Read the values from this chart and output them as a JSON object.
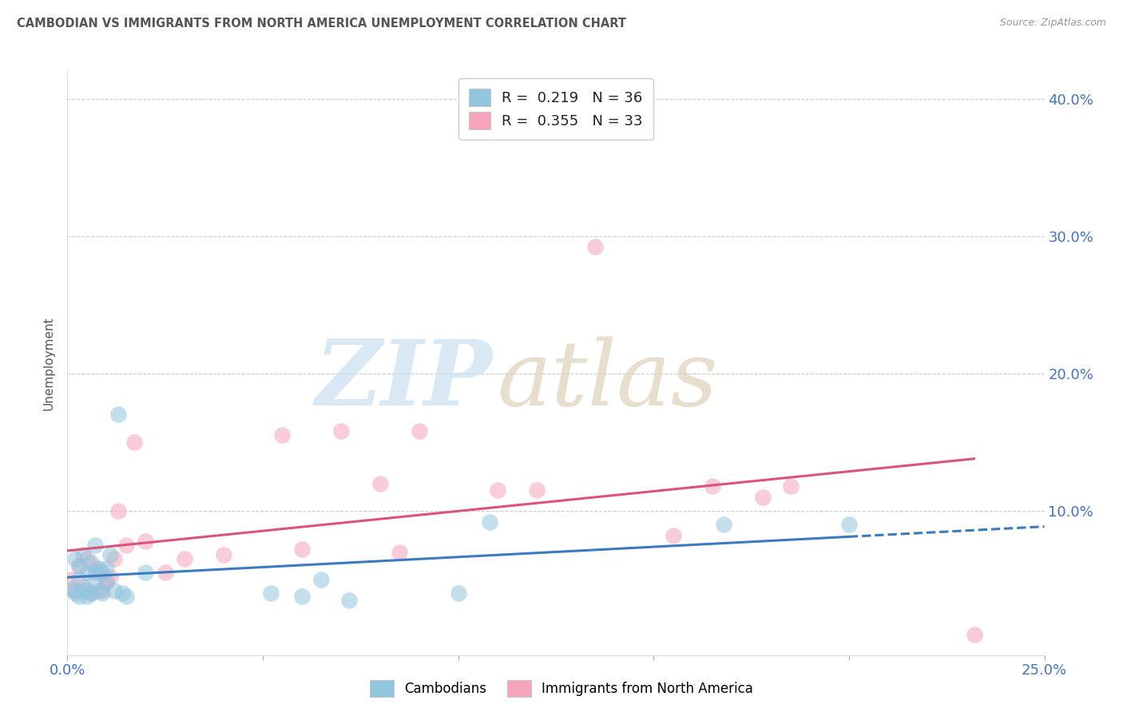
{
  "title": "CAMBODIAN VS IMMIGRANTS FROM NORTH AMERICA UNEMPLOYMENT CORRELATION CHART",
  "source": "Source: ZipAtlas.com",
  "ylabel": "Unemployment",
  "xlim": [
    0.0,
    0.25
  ],
  "ylim": [
    -0.005,
    0.42
  ],
  "blue_R": "0.219",
  "blue_N": "36",
  "pink_R": "0.355",
  "pink_N": "33",
  "blue_color": "#92c5de",
  "pink_color": "#f4a5bb",
  "blue_line_color": "#3a7abf",
  "pink_line_color": "#d9537a",
  "blue_scatter_edge": "#6aaed6",
  "pink_scatter_edge": "#e87fa0",
  "cambodian_x": [
    0.001,
    0.002,
    0.002,
    0.003,
    0.003,
    0.003,
    0.004,
    0.004,
    0.005,
    0.005,
    0.005,
    0.006,
    0.006,
    0.007,
    0.007,
    0.007,
    0.008,
    0.008,
    0.009,
    0.009,
    0.01,
    0.01,
    0.011,
    0.012,
    0.013,
    0.014,
    0.015,
    0.02,
    0.052,
    0.06,
    0.065,
    0.072,
    0.1,
    0.108,
    0.168,
    0.2
  ],
  "cambodian_y": [
    0.043,
    0.04,
    0.065,
    0.038,
    0.06,
    0.05,
    0.042,
    0.068,
    0.038,
    0.042,
    0.055,
    0.04,
    0.062,
    0.048,
    0.055,
    0.075,
    0.042,
    0.058,
    0.04,
    0.055,
    0.048,
    0.058,
    0.068,
    0.042,
    0.17,
    0.04,
    0.038,
    0.055,
    0.04,
    0.038,
    0.05,
    0.035,
    0.04,
    0.092,
    0.09,
    0.09
  ],
  "na_x": [
    0.001,
    0.002,
    0.003,
    0.004,
    0.005,
    0.006,
    0.007,
    0.008,
    0.009,
    0.01,
    0.011,
    0.012,
    0.013,
    0.015,
    0.017,
    0.02,
    0.025,
    0.03,
    0.04,
    0.055,
    0.06,
    0.07,
    0.08,
    0.085,
    0.09,
    0.11,
    0.12,
    0.135,
    0.155,
    0.165,
    0.178,
    0.185,
    0.232
  ],
  "na_y": [
    0.05,
    0.042,
    0.06,
    0.045,
    0.065,
    0.04,
    0.058,
    0.055,
    0.042,
    0.048,
    0.052,
    0.065,
    0.1,
    0.075,
    0.15,
    0.078,
    0.055,
    0.065,
    0.068,
    0.155,
    0.072,
    0.158,
    0.12,
    0.07,
    0.158,
    0.115,
    0.115,
    0.292,
    0.082,
    0.118,
    0.11,
    0.118,
    0.01
  ]
}
